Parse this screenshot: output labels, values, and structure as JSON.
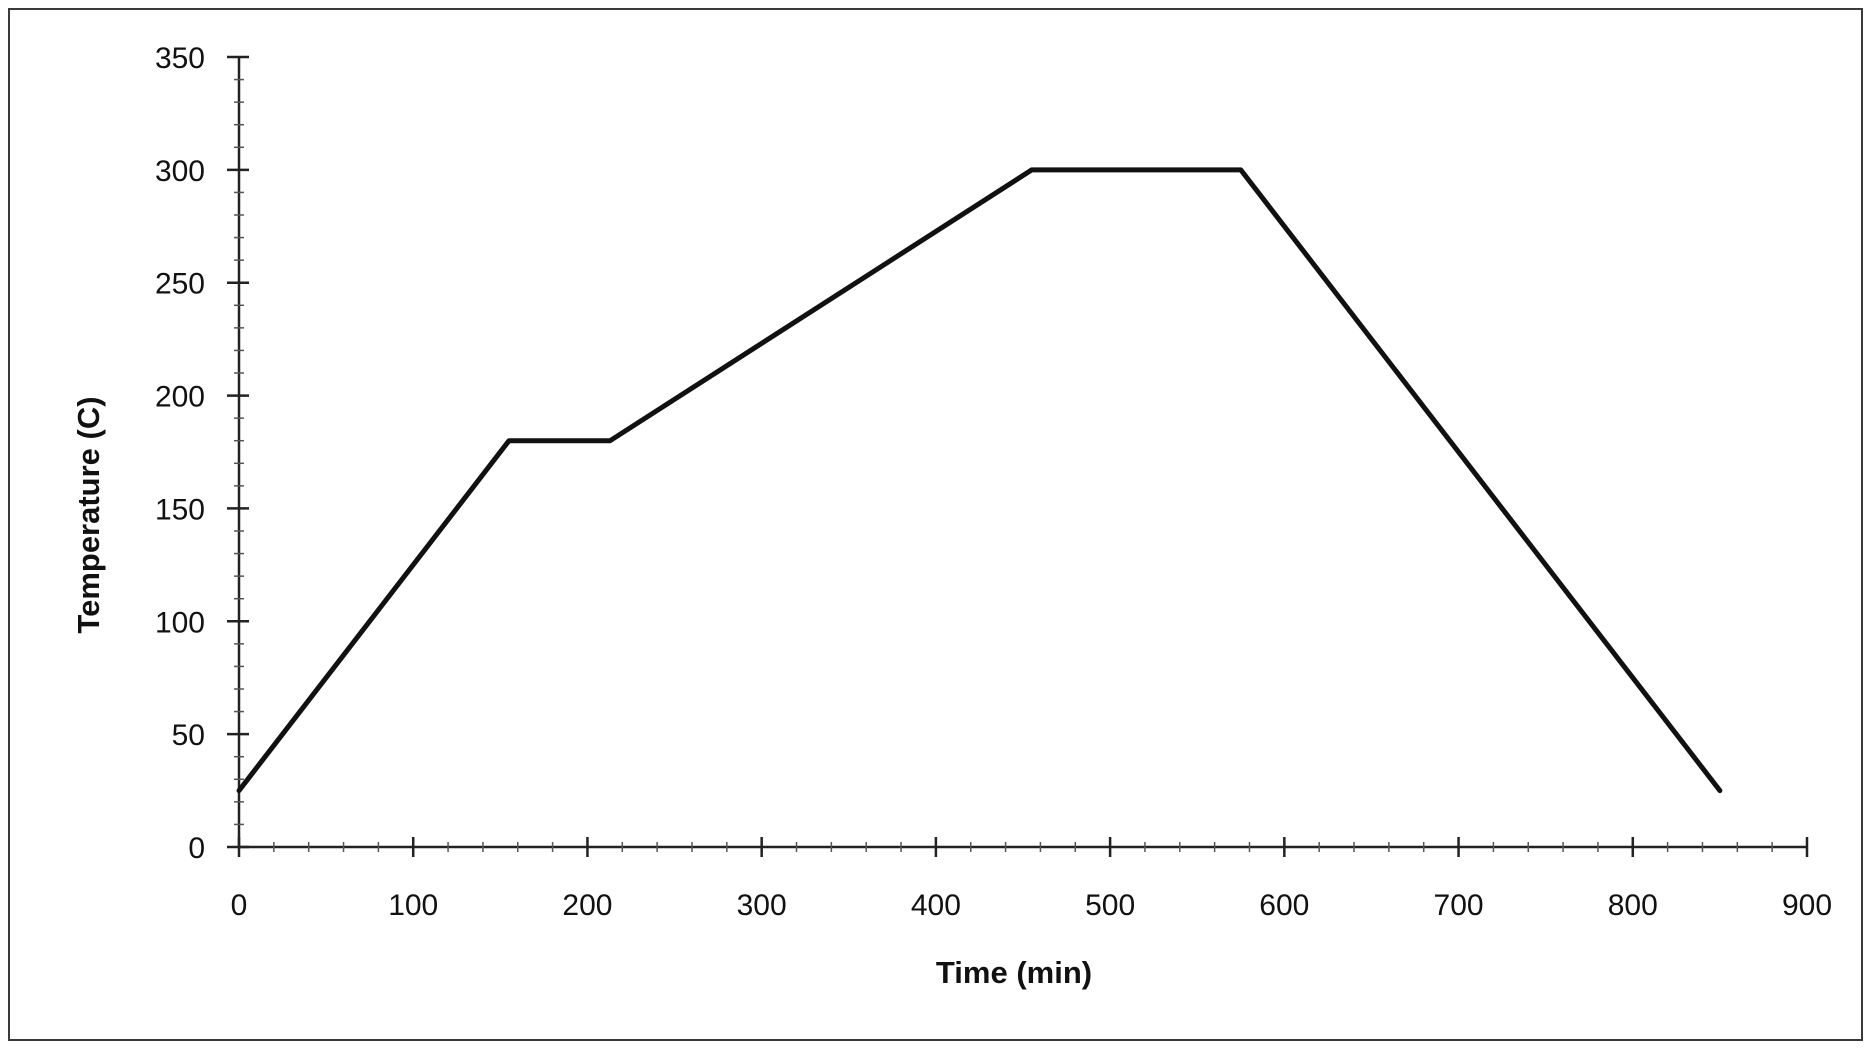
{
  "chart_data": {
    "type": "line",
    "title": "",
    "xlabel": "Time (min)",
    "ylabel": "Temperature (C)",
    "xlim": [
      0,
      900
    ],
    "ylim": [
      0,
      350
    ],
    "x_ticks": [
      0,
      100,
      200,
      300,
      400,
      500,
      600,
      700,
      800,
      900
    ],
    "y_ticks": [
      0,
      50,
      100,
      150,
      200,
      250,
      300,
      350
    ],
    "x_tick_labels": [
      "0",
      "100",
      "200",
      "300",
      "400",
      "500",
      "600",
      "700",
      "800",
      "900"
    ],
    "y_tick_labels": [
      "0",
      "50",
      "100",
      "150",
      "200",
      "250",
      "300",
      "350"
    ],
    "grid": false,
    "legend": "none",
    "series": [
      {
        "color": "#111111",
        "x": [
          0,
          155,
          213,
          455,
          575,
          850
        ],
        "y": [
          25,
          180,
          180,
          300,
          300,
          25
        ]
      }
    ]
  }
}
